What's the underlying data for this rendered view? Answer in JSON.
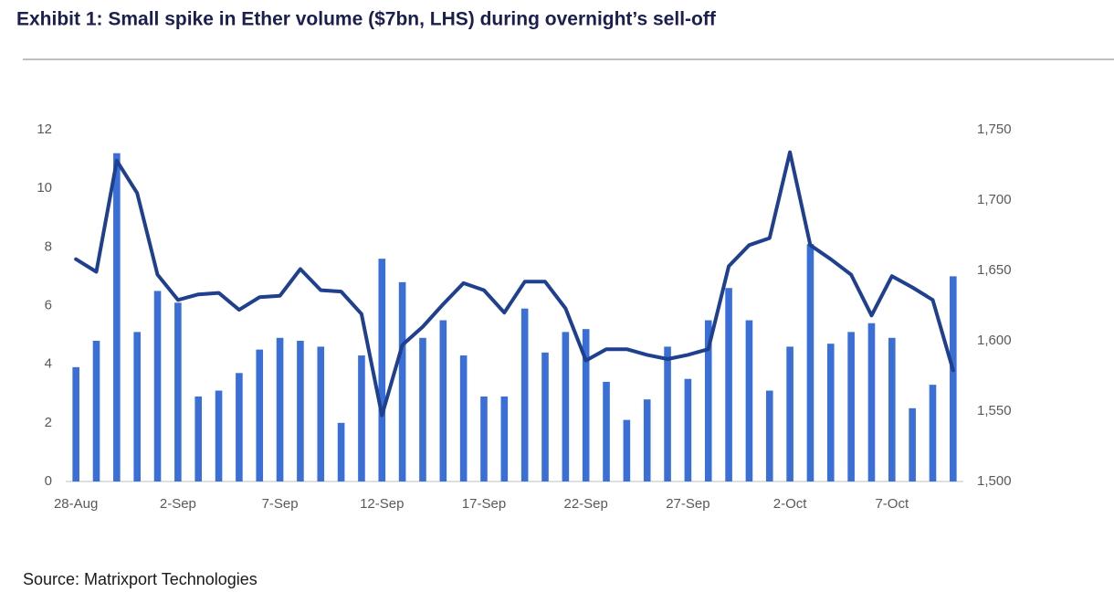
{
  "chart_data": {
    "type": "bar-line",
    "title": "Exhibit 1: Small spike in Ether volume ($7bn, LHS) during overnight’s sell-off",
    "source": "Source: Matrixport Technologies",
    "categories": [
      "28-Aug",
      null,
      null,
      null,
      null,
      "2-Sep",
      null,
      null,
      null,
      null,
      "7-Sep",
      null,
      null,
      null,
      null,
      "12-Sep",
      null,
      null,
      null,
      null,
      "17-Sep",
      null,
      null,
      null,
      null,
      "22-Sep",
      null,
      null,
      null,
      null,
      "27-Sep",
      null,
      null,
      null,
      null,
      "2-Oct",
      null,
      null,
      null,
      null,
      "7-Oct",
      null,
      null,
      null
    ],
    "series": [
      {
        "type": "bar",
        "color": "#3b6fd8",
        "values": [
          3.9,
          4.8,
          11.2,
          5.1,
          6.5,
          6.1,
          2.9,
          3.1,
          3.7,
          4.5,
          4.9,
          4.8,
          4.6,
          2.0,
          4.3,
          7.6,
          6.8,
          4.9,
          5.5,
          4.3,
          2.9,
          2.9,
          5.9,
          4.4,
          5.1,
          5.2,
          3.4,
          2.1,
          2.8,
          4.6,
          3.5,
          5.5,
          6.6,
          5.5,
          3.1,
          4.6,
          8.1,
          4.7,
          5.1,
          5.4,
          4.9,
          2.5,
          3.3,
          7.0
        ]
      },
      {
        "type": "line",
        "color": "#1f3f8f",
        "axis": "y2",
        "values": [
          1658,
          1649,
          1728,
          1705,
          1647,
          1629,
          1633,
          1634,
          1622,
          1631,
          1632,
          1651,
          1636,
          1635,
          1619,
          1547,
          1597,
          1610,
          1626,
          1641,
          1636,
          1620,
          1642,
          1642,
          1623,
          1586,
          1594,
          1594,
          1590,
          1587,
          1590,
          1594,
          1653,
          1668,
          1673,
          1734,
          1668,
          1658,
          1647,
          1618,
          1646,
          1638,
          1629,
          1579
        ]
      }
    ],
    "ylim": [
      0,
      12
    ],
    "yticks": [
      0,
      2,
      4,
      6,
      8,
      10,
      12
    ],
    "y2lim": [
      1500,
      1750
    ],
    "y2ticks": [
      {
        "value": 1500,
        "label": "1,500"
      },
      {
        "value": 1550,
        "label": "1,550"
      },
      {
        "value": 1600,
        "label": "1,600"
      },
      {
        "value": 1650,
        "label": "1,650"
      },
      {
        "value": 1700,
        "label": "1,700"
      },
      {
        "value": 1750,
        "label": "1,750"
      }
    ],
    "grid": false
  }
}
